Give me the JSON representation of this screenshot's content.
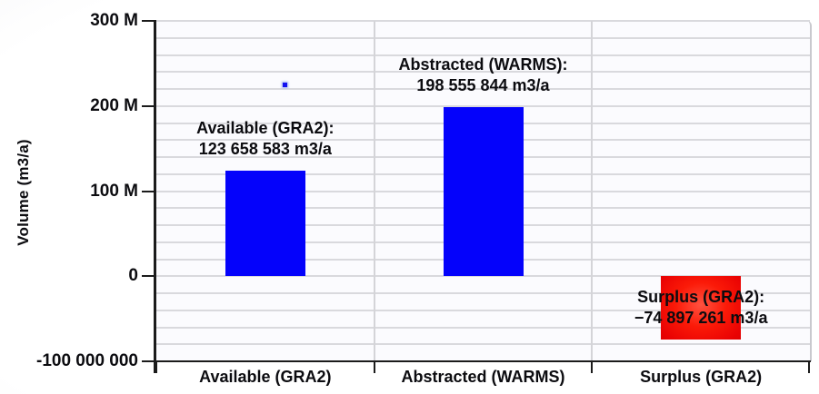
{
  "chart_data": {
    "type": "bar",
    "ylabel": "Volume (m3/a)",
    "categories": [
      "Available (GRA2)",
      "Abstracted (WARMS)",
      "Surplus (GRA2)"
    ],
    "values": [
      123658583,
      198555844,
      -74897261
    ],
    "bar_value_labels": [
      [
        "Available (GRA2):",
        "123 658 583 m3/a"
      ],
      [
        "Abstracted (WARMS):",
        "198 555 844 m3/a"
      ],
      [
        "−74 897 261 m3/a",
        "Surplus (GRA2):"
      ]
    ],
    "bar_label_lines": [
      {
        "line1": "Available (GRA2):",
        "line2": "123 658 583 m3/a"
      },
      {
        "line1": "Abstracted (WARMS):",
        "line2": "198 555 844 m3/a"
      },
      {
        "line1": "Surplus (GRA2):",
        "line2": "−74 897 261 m3/a"
      }
    ],
    "y_ticks": [
      {
        "label": "300 M",
        "value": 300000000
      },
      {
        "label": "200 M",
        "value": 200000000
      },
      {
        "label": "100 M",
        "value": 100000000
      },
      {
        "label": "0",
        "value": 0
      },
      {
        "label": "-100 000 000",
        "value": -100000000
      }
    ],
    "ylim": [
      -100000000,
      300000000
    ],
    "grid_interval": 20000000,
    "grid": true,
    "legend": false,
    "colors": {
      "bar_positive": "#0402fb",
      "bar_negative": "#ee0404",
      "grid_line": "#d9d9dd",
      "axis": "#1b1b1b",
      "text": "#0c0c10",
      "plot_background": "#fbfbfe"
    },
    "stray_marker": {
      "present": true,
      "color": "#1411f0"
    }
  }
}
